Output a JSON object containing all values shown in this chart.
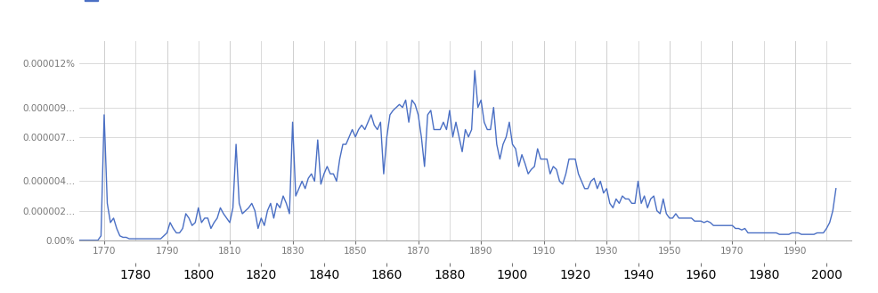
{
  "legend_color": "#4a6fc4",
  "line_color": "#4a6fc4",
  "line_width": 1.0,
  "background_color": "#ffffff",
  "grid_color": "#cccccc",
  "tick_color": "#777777",
  "ylim": [
    0,
    1.35e-07
  ],
  "xlim": [
    1762,
    2008
  ],
  "major_xticks": [
    1770,
    1790,
    1810,
    1830,
    1850,
    1870,
    1890,
    1910,
    1930,
    1950,
    1970,
    1990
  ],
  "minor_xticks": [
    1780,
    1800,
    1820,
    1840,
    1860,
    1880,
    1900,
    1920,
    1940,
    1960,
    1980,
    2000
  ],
  "ytick_labels": [
    "0.00%",
    "0.000002...",
    "0.000004...",
    "0.000007...",
    "0.000009...",
    "0.000012%"
  ],
  "ytick_values": [
    0,
    2e-08,
    4e-08,
    7e-08,
    9e-08,
    1.2e-07
  ],
  "data": [
    [
      1760,
      0.0
    ],
    [
      1761,
      0.0
    ],
    [
      1762,
      0.0
    ],
    [
      1763,
      0.0
    ],
    [
      1764,
      0.0
    ],
    [
      1765,
      0.0
    ],
    [
      1766,
      0.0
    ],
    [
      1767,
      0.0
    ],
    [
      1768,
      0.0
    ],
    [
      1769,
      3e-09
    ],
    [
      1770,
      8.5e-08
    ],
    [
      1771,
      2.5e-08
    ],
    [
      1772,
      1.2e-08
    ],
    [
      1773,
      1.5e-08
    ],
    [
      1774,
      8e-09
    ],
    [
      1775,
      3e-09
    ],
    [
      1776,
      2e-09
    ],
    [
      1777,
      2e-09
    ],
    [
      1778,
      1e-09
    ],
    [
      1779,
      1e-09
    ],
    [
      1780,
      1e-09
    ],
    [
      1781,
      1e-09
    ],
    [
      1782,
      1e-09
    ],
    [
      1783,
      1e-09
    ],
    [
      1784,
      1e-09
    ],
    [
      1785,
      1e-09
    ],
    [
      1786,
      1e-09
    ],
    [
      1787,
      1e-09
    ],
    [
      1788,
      1e-09
    ],
    [
      1789,
      3e-09
    ],
    [
      1790,
      5e-09
    ],
    [
      1791,
      1.2e-08
    ],
    [
      1792,
      8e-09
    ],
    [
      1793,
      5e-09
    ],
    [
      1794,
      5e-09
    ],
    [
      1795,
      8e-09
    ],
    [
      1796,
      1.8e-08
    ],
    [
      1797,
      1.5e-08
    ],
    [
      1798,
      1e-08
    ],
    [
      1799,
      1.2e-08
    ],
    [
      1800,
      2.2e-08
    ],
    [
      1801,
      1.2e-08
    ],
    [
      1802,
      1.5e-08
    ],
    [
      1803,
      1.5e-08
    ],
    [
      1804,
      8e-09
    ],
    [
      1805,
      1.2e-08
    ],
    [
      1806,
      1.5e-08
    ],
    [
      1807,
      2.2e-08
    ],
    [
      1808,
      1.8e-08
    ],
    [
      1809,
      1.5e-08
    ],
    [
      1810,
      1.2e-08
    ],
    [
      1811,
      2.2e-08
    ],
    [
      1812,
      6.5e-08
    ],
    [
      1813,
      2.5e-08
    ],
    [
      1814,
      1.8e-08
    ],
    [
      1815,
      2e-08
    ],
    [
      1816,
      2.2e-08
    ],
    [
      1817,
      2.5e-08
    ],
    [
      1818,
      2e-08
    ],
    [
      1819,
      8e-09
    ],
    [
      1820,
      1.5e-08
    ],
    [
      1821,
      1e-08
    ],
    [
      1822,
      2e-08
    ],
    [
      1823,
      2.5e-08
    ],
    [
      1824,
      1.5e-08
    ],
    [
      1825,
      2.5e-08
    ],
    [
      1826,
      2.2e-08
    ],
    [
      1827,
      3e-08
    ],
    [
      1828,
      2.5e-08
    ],
    [
      1829,
      1.8e-08
    ],
    [
      1830,
      8e-08
    ],
    [
      1831,
      3e-08
    ],
    [
      1832,
      3.5e-08
    ],
    [
      1833,
      4e-08
    ],
    [
      1834,
      3.5e-08
    ],
    [
      1835,
      4.2e-08
    ],
    [
      1836,
      4.5e-08
    ],
    [
      1837,
      4e-08
    ],
    [
      1838,
      6.8e-08
    ],
    [
      1839,
      3.8e-08
    ],
    [
      1840,
      4.5e-08
    ],
    [
      1841,
      5e-08
    ],
    [
      1842,
      4.5e-08
    ],
    [
      1843,
      4.5e-08
    ],
    [
      1844,
      4e-08
    ],
    [
      1845,
      5.5e-08
    ],
    [
      1846,
      6.5e-08
    ],
    [
      1847,
      6.5e-08
    ],
    [
      1848,
      7e-08
    ],
    [
      1849,
      7.5e-08
    ],
    [
      1850,
      7e-08
    ],
    [
      1851,
      7.5e-08
    ],
    [
      1852,
      7.8e-08
    ],
    [
      1853,
      7.5e-08
    ],
    [
      1854,
      8e-08
    ],
    [
      1855,
      8.5e-08
    ],
    [
      1856,
      7.8e-08
    ],
    [
      1857,
      7.5e-08
    ],
    [
      1858,
      8e-08
    ],
    [
      1859,
      4.5e-08
    ],
    [
      1860,
      7e-08
    ],
    [
      1861,
      8.5e-08
    ],
    [
      1862,
      8.8e-08
    ],
    [
      1863,
      9e-08
    ],
    [
      1864,
      9.2e-08
    ],
    [
      1865,
      9e-08
    ],
    [
      1866,
      9.5e-08
    ],
    [
      1867,
      8e-08
    ],
    [
      1868,
      9.5e-08
    ],
    [
      1869,
      9.2e-08
    ],
    [
      1870,
      8.5e-08
    ],
    [
      1871,
      7e-08
    ],
    [
      1872,
      5e-08
    ],
    [
      1873,
      8.5e-08
    ],
    [
      1874,
      8.8e-08
    ],
    [
      1875,
      7.5e-08
    ],
    [
      1876,
      7.5e-08
    ],
    [
      1877,
      7.5e-08
    ],
    [
      1878,
      8e-08
    ],
    [
      1879,
      7.5e-08
    ],
    [
      1880,
      8.8e-08
    ],
    [
      1881,
      7e-08
    ],
    [
      1882,
      8e-08
    ],
    [
      1883,
      7e-08
    ],
    [
      1884,
      6e-08
    ],
    [
      1885,
      7.5e-08
    ],
    [
      1886,
      7e-08
    ],
    [
      1887,
      7.5e-08
    ],
    [
      1888,
      1.15e-07
    ],
    [
      1889,
      9e-08
    ],
    [
      1890,
      9.5e-08
    ],
    [
      1891,
      8e-08
    ],
    [
      1892,
      7.5e-08
    ],
    [
      1893,
      7.5e-08
    ],
    [
      1894,
      9e-08
    ],
    [
      1895,
      6.5e-08
    ],
    [
      1896,
      5.5e-08
    ],
    [
      1897,
      6.5e-08
    ],
    [
      1898,
      7e-08
    ],
    [
      1899,
      8e-08
    ],
    [
      1900,
      6.5e-08
    ],
    [
      1901,
      6.2e-08
    ],
    [
      1902,
      5e-08
    ],
    [
      1903,
      5.8e-08
    ],
    [
      1904,
      5.2e-08
    ],
    [
      1905,
      4.5e-08
    ],
    [
      1906,
      4.8e-08
    ],
    [
      1907,
      5e-08
    ],
    [
      1908,
      6.2e-08
    ],
    [
      1909,
      5.5e-08
    ],
    [
      1910,
      5.5e-08
    ],
    [
      1911,
      5.5e-08
    ],
    [
      1912,
      4.5e-08
    ],
    [
      1913,
      5e-08
    ],
    [
      1914,
      4.8e-08
    ],
    [
      1915,
      4e-08
    ],
    [
      1916,
      3.8e-08
    ],
    [
      1917,
      4.5e-08
    ],
    [
      1918,
      5.5e-08
    ],
    [
      1919,
      5.5e-08
    ],
    [
      1920,
      5.5e-08
    ],
    [
      1921,
      4.5e-08
    ],
    [
      1922,
      4e-08
    ],
    [
      1923,
      3.5e-08
    ],
    [
      1924,
      3.5e-08
    ],
    [
      1925,
      4e-08
    ],
    [
      1926,
      4.2e-08
    ],
    [
      1927,
      3.5e-08
    ],
    [
      1928,
      4e-08
    ],
    [
      1929,
      3.2e-08
    ],
    [
      1930,
      3.5e-08
    ],
    [
      1931,
      2.5e-08
    ],
    [
      1932,
      2.2e-08
    ],
    [
      1933,
      2.8e-08
    ],
    [
      1934,
      2.5e-08
    ],
    [
      1935,
      3e-08
    ],
    [
      1936,
      2.8e-08
    ],
    [
      1937,
      2.8e-08
    ],
    [
      1938,
      2.5e-08
    ],
    [
      1939,
      2.5e-08
    ],
    [
      1940,
      4e-08
    ],
    [
      1941,
      2.5e-08
    ],
    [
      1942,
      3e-08
    ],
    [
      1943,
      2.2e-08
    ],
    [
      1944,
      2.8e-08
    ],
    [
      1945,
      3e-08
    ],
    [
      1946,
      2e-08
    ],
    [
      1947,
      1.8e-08
    ],
    [
      1948,
      2.8e-08
    ],
    [
      1949,
      1.8e-08
    ],
    [
      1950,
      1.5e-08
    ],
    [
      1951,
      1.5e-08
    ],
    [
      1952,
      1.8e-08
    ],
    [
      1953,
      1.5e-08
    ],
    [
      1954,
      1.5e-08
    ],
    [
      1955,
      1.5e-08
    ],
    [
      1956,
      1.5e-08
    ],
    [
      1957,
      1.5e-08
    ],
    [
      1958,
      1.3e-08
    ],
    [
      1959,
      1.3e-08
    ],
    [
      1960,
      1.3e-08
    ],
    [
      1961,
      1.2e-08
    ],
    [
      1962,
      1.3e-08
    ],
    [
      1963,
      1.2e-08
    ],
    [
      1964,
      1e-08
    ],
    [
      1965,
      1e-08
    ],
    [
      1966,
      1e-08
    ],
    [
      1967,
      1e-08
    ],
    [
      1968,
      1e-08
    ],
    [
      1969,
      1e-08
    ],
    [
      1970,
      1e-08
    ],
    [
      1971,
      8e-09
    ],
    [
      1972,
      8e-09
    ],
    [
      1973,
      7e-09
    ],
    [
      1974,
      8e-09
    ],
    [
      1975,
      5e-09
    ],
    [
      1976,
      5e-09
    ],
    [
      1977,
      5e-09
    ],
    [
      1978,
      5e-09
    ],
    [
      1979,
      5e-09
    ],
    [
      1980,
      5e-09
    ],
    [
      1981,
      5e-09
    ],
    [
      1982,
      5e-09
    ],
    [
      1983,
      5e-09
    ],
    [
      1984,
      5e-09
    ],
    [
      1985,
      4e-09
    ],
    [
      1986,
      4e-09
    ],
    [
      1987,
      4e-09
    ],
    [
      1988,
      4e-09
    ],
    [
      1989,
      5e-09
    ],
    [
      1990,
      5e-09
    ],
    [
      1991,
      5e-09
    ],
    [
      1992,
      4e-09
    ],
    [
      1993,
      4e-09
    ],
    [
      1994,
      4e-09
    ],
    [
      1995,
      4e-09
    ],
    [
      1996,
      4e-09
    ],
    [
      1997,
      5e-09
    ],
    [
      1998,
      5e-09
    ],
    [
      1999,
      5e-09
    ],
    [
      2000,
      8e-09
    ],
    [
      2001,
      1.2e-08
    ],
    [
      2002,
      2e-08
    ],
    [
      2003,
      3.5e-08
    ]
  ]
}
